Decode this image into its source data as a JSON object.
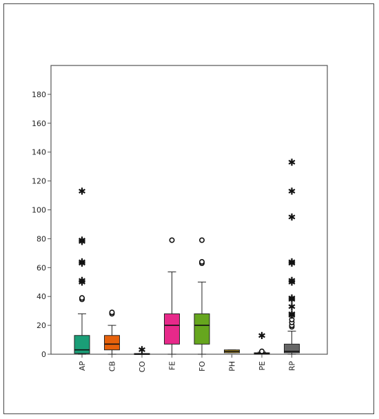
{
  "chart_data": {
    "type": "boxplot",
    "title": "",
    "xlabel": "",
    "ylabel": "",
    "ylim": [
      0,
      200
    ],
    "yticks": [
      0,
      20,
      40,
      60,
      80,
      100,
      120,
      140,
      160,
      180
    ],
    "grid": false,
    "legend": "none",
    "categories": [
      "AP",
      "CB",
      "CO",
      "FE",
      "FO",
      "PH",
      "PE",
      "RP"
    ],
    "boxes": [
      {
        "category": "AP",
        "color": "#1a9e77",
        "min": 0,
        "q1": 0.5,
        "median": 3,
        "q3": 13,
        "max": 28,
        "outliers_circle": [
          38,
          39
        ],
        "outliers_extreme": [
          50,
          51,
          63,
          64,
          78,
          79,
          113
        ]
      },
      {
        "category": "CB",
        "color": "#e6610b",
        "min": 0,
        "q1": 3,
        "median": 7,
        "q3": 13,
        "max": 20,
        "outliers_circle": [
          28,
          29
        ],
        "outliers_extreme": []
      },
      {
        "category": "CO",
        "color": "#7570b3",
        "min": 0,
        "q1": 0,
        "median": 0,
        "q3": 0.5,
        "max": 0.5,
        "outliers_circle": [],
        "outliers_extreme": [
          3
        ]
      },
      {
        "category": "FE",
        "color": "#e7298a",
        "min": 0,
        "q1": 7,
        "median": 20,
        "q3": 28,
        "max": 57,
        "outliers_circle": [
          79
        ],
        "outliers_extreme": []
      },
      {
        "category": "FO",
        "color": "#66a61e",
        "min": 0,
        "q1": 7,
        "median": 20,
        "q3": 28,
        "max": 50,
        "outliers_circle": [
          63,
          64,
          79
        ],
        "outliers_extreme": []
      },
      {
        "category": "PH",
        "color": "#c9a227",
        "min": 1,
        "q1": 1,
        "median": 2,
        "q3": 3,
        "max": 3,
        "outliers_circle": [],
        "outliers_extreme": []
      },
      {
        "category": "PE",
        "color": "#a6761d",
        "min": 0,
        "q1": 0,
        "median": 0.5,
        "q3": 1,
        "max": 1.5,
        "outliers_circle": [
          2
        ],
        "outliers_extreme": [
          13
        ]
      },
      {
        "category": "RP",
        "color": "#666666",
        "min": 0,
        "q1": 1,
        "median": 2,
        "q3": 7,
        "max": 16,
        "outliers_circle": [
          19,
          20,
          22,
          24
        ],
        "outliers_extreme": [
          27,
          28,
          33,
          38,
          39,
          50,
          51,
          63,
          64,
          95,
          113,
          133
        ]
      }
    ]
  }
}
